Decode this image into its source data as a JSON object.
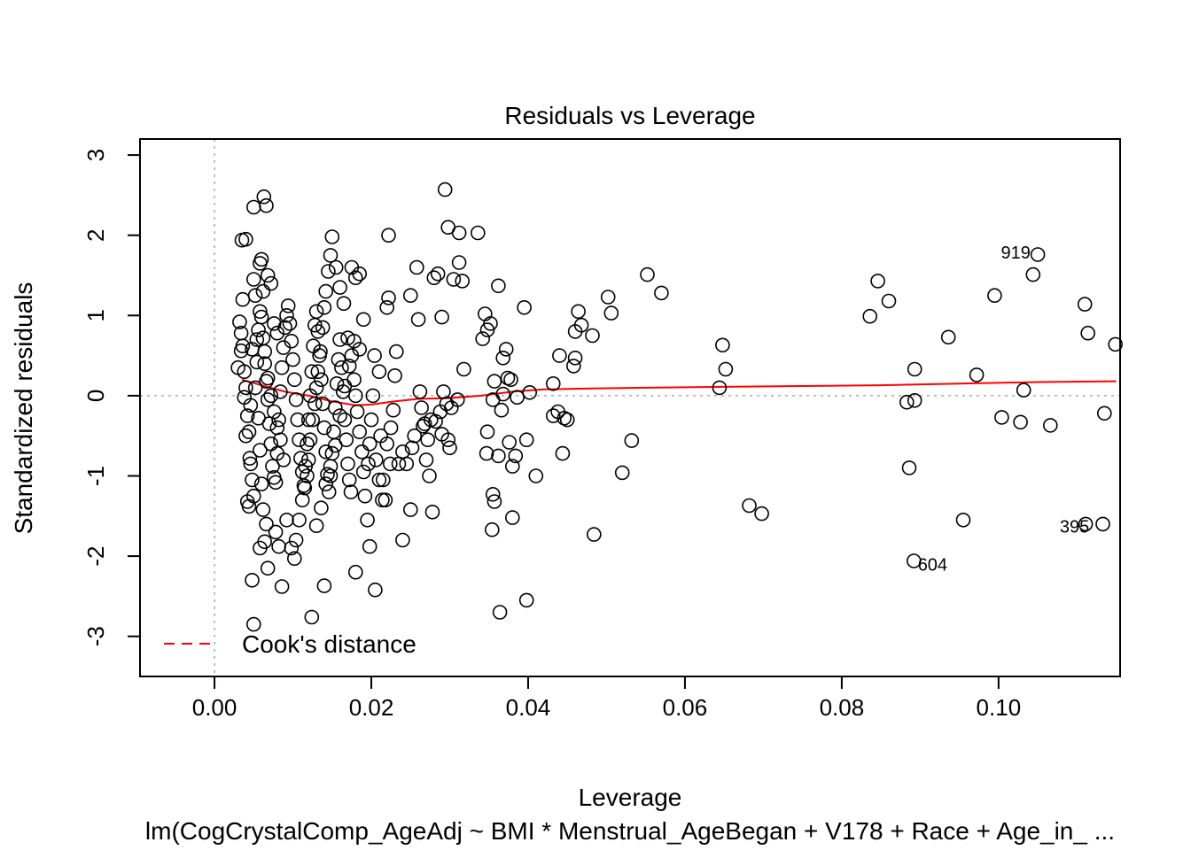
{
  "chart_data": {
    "type": "scatter",
    "title": "Residuals vs Leverage",
    "xlabel": "Leverage",
    "ylabel": "Standardized residuals",
    "subtitle": "lm(CogCrystalComp_AgeAdj ~ BMI * Menstrual_AgeBegan + V178 + Race + Age_in_ ...",
    "xlim": [
      -0.0095,
      0.1155
    ],
    "ylim": [
      -3.5,
      3.2
    ],
    "x_ticks": [
      0.0,
      0.02,
      0.04,
      0.06,
      0.08,
      0.1
    ],
    "x_tick_labels": [
      "0.00",
      "0.02",
      "0.04",
      "0.06",
      "0.08",
      "0.10"
    ],
    "y_ticks": [
      -3,
      -2,
      -1,
      0,
      1,
      2,
      3
    ],
    "y_tick_labels": [
      "-3",
      "-2",
      "-1",
      "0",
      "1",
      "2",
      "3"
    ],
    "legend": {
      "label": "Cook's distance",
      "position": "bottom-left",
      "color": "#ff0000"
    },
    "smooth_color": "#ff0000",
    "reference_line_color": "#aaaaaa",
    "point_labels": [
      {
        "text": "919",
        "x": 0.1003,
        "y": 1.77
      },
      {
        "text": "395",
        "x": 0.1078,
        "y": -1.65
      },
      {
        "text": "604",
        "x": 0.0897,
        "y": -2.12
      }
    ],
    "smooth": [
      [
        0.0035,
        0.2
      ],
      [
        0.006,
        0.13
      ],
      [
        0.009,
        0.05
      ],
      [
        0.012,
        0.0
      ],
      [
        0.015,
        -0.07
      ],
      [
        0.018,
        -0.12
      ],
      [
        0.02,
        -0.11
      ],
      [
        0.023,
        -0.07
      ],
      [
        0.026,
        -0.04
      ],
      [
        0.03,
        -0.03
      ],
      [
        0.034,
        0.0
      ],
      [
        0.038,
        0.05
      ],
      [
        0.042,
        0.08
      ],
      [
        0.048,
        0.09
      ],
      [
        0.055,
        0.1
      ],
      [
        0.065,
        0.11
      ],
      [
        0.075,
        0.12
      ],
      [
        0.085,
        0.13
      ],
      [
        0.095,
        0.15
      ],
      [
        0.105,
        0.17
      ],
      [
        0.115,
        0.18
      ]
    ],
    "points": [
      [
        0.0035,
        1.94
      ],
      [
        0.004,
        1.95
      ],
      [
        0.0045,
        -0.78
      ],
      [
        0.003,
        0.35
      ],
      [
        0.0032,
        0.92
      ],
      [
        0.0034,
        0.56
      ],
      [
        0.0036,
        1.2
      ],
      [
        0.0038,
        -0.02
      ],
      [
        0.004,
        -0.5
      ],
      [
        0.0042,
        -1.32
      ],
      [
        0.0044,
        -1.38
      ],
      [
        0.0046,
        -0.12
      ],
      [
        0.0048,
        0.58
      ],
      [
        0.005,
        1.45
      ],
      [
        0.0052,
        1.25
      ],
      [
        0.0054,
        0.7
      ],
      [
        0.0056,
        -0.28
      ],
      [
        0.0058,
        -0.68
      ],
      [
        0.006,
        -1.1
      ],
      [
        0.0062,
        -1.42
      ],
      [
        0.005,
        -2.85
      ],
      [
        0.0048,
        -2.3
      ],
      [
        0.005,
        2.35
      ],
      [
        0.0063,
        2.48
      ],
      [
        0.0066,
        2.37
      ],
      [
        0.0058,
        1.65
      ],
      [
        0.006,
        1.7
      ],
      [
        0.0062,
        1.3
      ],
      [
        0.0068,
        1.5
      ],
      [
        0.0072,
        1.4
      ],
      [
        0.0076,
        0.9
      ],
      [
        0.008,
        0.78
      ],
      [
        0.0064,
        0.4
      ],
      [
        0.0068,
        0.22
      ],
      [
        0.0072,
        0.0
      ],
      [
        0.0076,
        -0.2
      ],
      [
        0.008,
        -0.4
      ],
      [
        0.0084,
        -0.55
      ],
      [
        0.0088,
        -0.8
      ],
      [
        0.0066,
        -1.6
      ],
      [
        0.0064,
        -1.82
      ],
      [
        0.0068,
        -2.15
      ],
      [
        0.0058,
        -1.9
      ],
      [
        0.0078,
        -1.7
      ],
      [
        0.0082,
        -1.88
      ],
      [
        0.0086,
        -2.38
      ],
      [
        0.0092,
        -1.55
      ],
      [
        0.0098,
        -1.9
      ],
      [
        0.0102,
        -2.03
      ],
      [
        0.0104,
        -1.8
      ],
      [
        0.0108,
        -1.55
      ],
      [
        0.0112,
        -1.3
      ],
      [
        0.0115,
        -1.15
      ],
      [
        0.0118,
        -1.0
      ],
      [
        0.012,
        -0.8
      ],
      [
        0.0122,
        -0.55
      ],
      [
        0.0125,
        -0.3
      ],
      [
        0.0128,
        -0.1
      ],
      [
        0.013,
        0.1
      ],
      [
        0.0132,
        0.3
      ],
      [
        0.0135,
        0.55
      ],
      [
        0.0138,
        0.85
      ],
      [
        0.014,
        1.1
      ],
      [
        0.0142,
        1.3
      ],
      [
        0.0145,
        1.55
      ],
      [
        0.0148,
        1.75
      ],
      [
        0.015,
        1.98
      ],
      [
        0.0155,
        1.6
      ],
      [
        0.016,
        1.35
      ],
      [
        0.0165,
        1.15
      ],
      [
        0.017,
        0.72
      ],
      [
        0.0175,
        0.5
      ],
      [
        0.0178,
        0.2
      ],
      [
        0.018,
        0.0
      ],
      [
        0.0182,
        -0.2
      ],
      [
        0.0185,
        -0.45
      ],
      [
        0.0188,
        -0.7
      ],
      [
        0.019,
        -0.95
      ],
      [
        0.0192,
        -1.25
      ],
      [
        0.0195,
        -1.55
      ],
      [
        0.0198,
        -1.88
      ],
      [
        0.0175,
        1.6
      ],
      [
        0.018,
        1.47
      ],
      [
        0.0185,
        1.52
      ],
      [
        0.019,
        0.95
      ],
      [
        0.0185,
        0.58
      ],
      [
        0.0178,
        0.68
      ],
      [
        0.0172,
        0.37
      ],
      [
        0.0166,
        0.12
      ],
      [
        0.016,
        -0.25
      ],
      [
        0.0154,
        -0.62
      ],
      [
        0.0148,
        -0.88
      ],
      [
        0.0142,
        -1.1
      ],
      [
        0.0136,
        -1.4
      ],
      [
        0.013,
        -1.62
      ],
      [
        0.0124,
        -2.76
      ],
      [
        0.014,
        -2.37
      ],
      [
        0.018,
        -2.2
      ],
      [
        0.0205,
        -2.42
      ],
      [
        0.0206,
        -0.8
      ],
      [
        0.021,
        -1.05
      ],
      [
        0.0214,
        -1.3
      ],
      [
        0.022,
        -0.6
      ],
      [
        0.0225,
        -0.4
      ],
      [
        0.0228,
        -0.18
      ],
      [
        0.023,
        0.25
      ],
      [
        0.0232,
        0.55
      ],
      [
        0.022,
        1.1
      ],
      [
        0.0222,
        1.22
      ],
      [
        0.0222,
        2.0
      ],
      [
        0.025,
        1.25
      ],
      [
        0.0258,
        1.6
      ],
      [
        0.026,
        0.95
      ],
      [
        0.0262,
        0.05
      ],
      [
        0.0264,
        -0.15
      ],
      [
        0.0266,
        -0.38
      ],
      [
        0.027,
        -0.8
      ],
      [
        0.0274,
        -1.0
      ],
      [
        0.0278,
        -1.45
      ],
      [
        0.024,
        -1.8
      ],
      [
        0.025,
        -1.42
      ],
      [
        0.028,
        1.47
      ],
      [
        0.0285,
        1.52
      ],
      [
        0.029,
        0.98
      ],
      [
        0.0292,
        0.05
      ],
      [
        0.0296,
        -0.1
      ],
      [
        0.0298,
        -0.55
      ],
      [
        0.03,
        -0.65
      ],
      [
        0.0294,
        2.57
      ],
      [
        0.0298,
        2.1
      ],
      [
        0.0312,
        2.03
      ],
      [
        0.0336,
        2.03
      ],
      [
        0.0312,
        1.66
      ],
      [
        0.0316,
        1.43
      ],
      [
        0.0305,
        1.45
      ],
      [
        0.0318,
        0.33
      ],
      [
        0.031,
        -0.05
      ],
      [
        0.0302,
        -0.15
      ],
      [
        0.0345,
        1.02
      ],
      [
        0.0342,
        0.71
      ],
      [
        0.0348,
        0.82
      ],
      [
        0.0352,
        0.9
      ],
      [
        0.0355,
        -0.05
      ],
      [
        0.0357,
        0.18
      ],
      [
        0.0348,
        -0.45
      ],
      [
        0.0347,
        -0.72
      ],
      [
        0.0355,
        -1.23
      ],
      [
        0.0357,
        -1.32
      ],
      [
        0.0354,
        -1.67
      ],
      [
        0.0362,
        -0.75
      ],
      [
        0.0366,
        -0.18
      ],
      [
        0.0368,
        0.02
      ],
      [
        0.0362,
        1.37
      ],
      [
        0.0368,
        0.47
      ],
      [
        0.0372,
        0.58
      ],
      [
        0.0374,
        0.22
      ],
      [
        0.0378,
        0.2
      ],
      [
        0.0376,
        -0.58
      ],
      [
        0.038,
        -0.88
      ],
      [
        0.0384,
        -0.75
      ],
      [
        0.0386,
        -0.02
      ],
      [
        0.038,
        -1.52
      ],
      [
        0.0364,
        -2.7
      ],
      [
        0.0398,
        -2.55
      ],
      [
        0.0395,
        1.1
      ],
      [
        0.0398,
        -0.55
      ],
      [
        0.0402,
        0.04
      ],
      [
        0.041,
        -1.0
      ],
      [
        0.0432,
        0.15
      ],
      [
        0.0432,
        -0.25
      ],
      [
        0.0438,
        -0.2
      ],
      [
        0.044,
        0.5
      ],
      [
        0.0444,
        -0.72
      ],
      [
        0.0446,
        -0.28
      ],
      [
        0.045,
        -0.3
      ],
      [
        0.0458,
        0.37
      ],
      [
        0.046,
        0.47
      ],
      [
        0.046,
        0.8
      ],
      [
        0.0464,
        1.05
      ],
      [
        0.0468,
        0.88
      ],
      [
        0.0482,
        0.75
      ],
      [
        0.0484,
        -1.73
      ],
      [
        0.0502,
        1.23
      ],
      [
        0.0506,
        1.03
      ],
      [
        0.052,
        -0.96
      ],
      [
        0.0532,
        -0.56
      ],
      [
        0.0552,
        1.51
      ],
      [
        0.057,
        1.28
      ],
      [
        0.0644,
        0.1
      ],
      [
        0.0648,
        0.63
      ],
      [
        0.0652,
        0.33
      ],
      [
        0.0682,
        -1.37
      ],
      [
        0.0698,
        -1.47
      ],
      [
        0.0836,
        0.99
      ],
      [
        0.0846,
        1.43
      ],
      [
        0.086,
        1.18
      ],
      [
        0.0883,
        -0.08
      ],
      [
        0.0886,
        -0.9
      ],
      [
        0.0893,
        0.33
      ],
      [
        0.0893,
        -0.06
      ],
      [
        0.0892,
        -2.06
      ],
      [
        0.0936,
        0.73
      ],
      [
        0.0955,
        -1.55
      ],
      [
        0.0972,
        0.26
      ],
      [
        0.0995,
        1.25
      ],
      [
        0.1004,
        -0.27
      ],
      [
        0.1028,
        -0.33
      ],
      [
        0.1032,
        0.07
      ],
      [
        0.1044,
        1.51
      ],
      [
        0.105,
        1.76
      ],
      [
        0.1066,
        -0.37
      ],
      [
        0.111,
        1.14
      ],
      [
        0.1114,
        0.78
      ],
      [
        0.1133,
        -1.6
      ],
      [
        0.1111,
        -1.6
      ],
      [
        0.1135,
        -0.22
      ],
      [
        0.1149,
        0.64
      ],
      [
        0.0034,
        0.78
      ],
      [
        0.0036,
        0.62
      ],
      [
        0.0038,
        0.3
      ],
      [
        0.004,
        0.1
      ],
      [
        0.0042,
        -0.25
      ],
      [
        0.0044,
        -0.45
      ],
      [
        0.0046,
        -0.85
      ],
      [
        0.0048,
        -1.05
      ],
      [
        0.005,
        -1.25
      ],
      [
        0.0052,
        0.1
      ],
      [
        0.0054,
        0.42
      ],
      [
        0.0056,
        0.82
      ],
      [
        0.0058,
        1.05
      ],
      [
        0.006,
        0.98
      ],
      [
        0.0062,
        0.72
      ],
      [
        0.0064,
        0.55
      ],
      [
        0.0066,
        0.18
      ],
      [
        0.0068,
        -0.05
      ],
      [
        0.007,
        -0.35
      ],
      [
        0.0072,
        -0.6
      ],
      [
        0.0074,
        -0.88
      ],
      [
        0.0076,
        -1.02
      ],
      [
        0.0078,
        -1.08
      ],
      [
        0.008,
        -0.72
      ],
      [
        0.0082,
        -0.3
      ],
      [
        0.0084,
        0.05
      ],
      [
        0.0086,
        0.35
      ],
      [
        0.0088,
        0.6
      ],
      [
        0.009,
        0.85
      ],
      [
        0.0092,
        1.0
      ],
      [
        0.0094,
        1.12
      ],
      [
        0.0096,
        0.9
      ],
      [
        0.0098,
        0.68
      ],
      [
        0.01,
        0.45
      ],
      [
        0.0102,
        0.2
      ],
      [
        0.0104,
        -0.05
      ],
      [
        0.0106,
        -0.3
      ],
      [
        0.0108,
        -0.55
      ],
      [
        0.011,
        -0.78
      ],
      [
        0.0112,
        -0.95
      ],
      [
        0.0114,
        -1.12
      ],
      [
        0.0116,
        -0.88
      ],
      [
        0.0118,
        -0.6
      ],
      [
        0.012,
        -0.3
      ],
      [
        0.0122,
        0.0
      ],
      [
        0.0124,
        0.3
      ],
      [
        0.0126,
        0.62
      ],
      [
        0.0128,
        0.88
      ],
      [
        0.013,
        1.05
      ],
      [
        0.0132,
        0.8
      ],
      [
        0.0134,
        0.5
      ],
      [
        0.0136,
        0.2
      ],
      [
        0.0138,
        -0.1
      ],
      [
        0.014,
        -0.4
      ],
      [
        0.0142,
        -0.7
      ],
      [
        0.0144,
        -0.98
      ],
      [
        0.0146,
        -1.2
      ],
      [
        0.0148,
        -1.0
      ],
      [
        0.015,
        -0.72
      ],
      [
        0.0152,
        -0.45
      ],
      [
        0.0154,
        -0.15
      ],
      [
        0.0156,
        0.15
      ],
      [
        0.0158,
        0.45
      ],
      [
        0.016,
        0.7
      ],
      [
        0.0162,
        0.35
      ],
      [
        0.0164,
        0.05
      ],
      [
        0.0166,
        -0.3
      ],
      [
        0.0168,
        -0.55
      ],
      [
        0.017,
        -0.85
      ],
      [
        0.0172,
        -1.05
      ],
      [
        0.0174,
        -1.2
      ],
      [
        0.0196,
        -0.85
      ],
      [
        0.0198,
        -0.6
      ],
      [
        0.02,
        -0.3
      ],
      [
        0.0202,
        0.0
      ],
      [
        0.0204,
        0.5
      ],
      [
        0.021,
        0.3
      ],
      [
        0.0212,
        -0.5
      ],
      [
        0.0215,
        -1.05
      ],
      [
        0.0218,
        -1.3
      ],
      [
        0.0224,
        -0.85
      ],
      [
        0.0235,
        -0.85
      ],
      [
        0.024,
        -0.7
      ],
      [
        0.0245,
        -0.85
      ],
      [
        0.0252,
        -0.65
      ],
      [
        0.0255,
        -0.5
      ],
      [
        0.0268,
        -0.35
      ],
      [
        0.0272,
        -0.55
      ],
      [
        0.0276,
        -0.3
      ],
      [
        0.0282,
        -0.32
      ],
      [
        0.0288,
        -0.2
      ],
      [
        0.029,
        -0.48
      ]
    ]
  }
}
